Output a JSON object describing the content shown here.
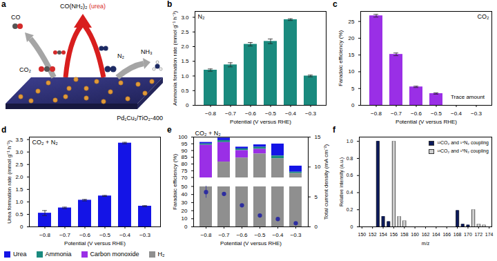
{
  "diagram": {
    "title": "a",
    "labels": {
      "co": "CO",
      "co2": "CO₂",
      "urea": "CO(NH₂)₂",
      "urea_note": "(urea)",
      "n2": "N₂",
      "nh3": "NH₃",
      "catalyst": "Pd₁Cu₁/TiO₂-400"
    }
  },
  "chart_data": [
    {
      "type": "bar",
      "title": "b",
      "annotation": "N₂",
      "categories": [
        "−0.8",
        "−0.7",
        "−0.6",
        "−0.5",
        "−0.4",
        "−0.3"
      ],
      "values": [
        1.2,
        1.38,
        2.08,
        2.18,
        2.92,
        1.0
      ],
      "errors": [
        0.04,
        0.07,
        0.06,
        0.08,
        0.03,
        0.03
      ],
      "color": "#1a8a7e",
      "xlabel": "Potential (V versus RHE)",
      "ylabel": "Ammonia formation rate (mmol g⁻¹ h⁻¹)",
      "ylim": [
        0,
        3.2
      ],
      "yticks": [
        0,
        0.5,
        {
          "value": 1,
          "label": "1.0"
        },
        1.5,
        {
          "value": 2,
          "label": "2.0"
        },
        2.5,
        {
          "value": 3,
          "label": "3.0"
        }
      ]
    },
    {
      "type": "bar",
      "title": "c",
      "annotation": "CO₂",
      "null_label": "Trace amount",
      "categories": [
        "−0.8",
        "−0.7",
        "−0.6",
        "−0.5",
        "−0.4",
        "−0.3"
      ],
      "values": [
        26.7,
        15.2,
        5.5,
        3.5,
        null,
        null
      ],
      "errors": [
        0.4,
        0.4,
        0.2,
        0.2,
        null,
        null
      ],
      "color": "#9a2fe6",
      "xlabel": "Potential (V versus RHE)",
      "ylabel": "Faradaic efficiency (%)",
      "ylim": [
        0,
        28
      ],
      "yticks": [
        0,
        5,
        10,
        15,
        20,
        25
      ]
    },
    {
      "type": "bar",
      "title": "d",
      "annotation": "CO₂ + N₂",
      "categories": [
        "−0.8",
        "−0.7",
        "−0.6",
        "−0.5",
        "−0.4",
        "−0.3"
      ],
      "values": [
        0.55,
        0.76,
        1.07,
        1.24,
        3.36,
        0.83
      ],
      "errors": [
        0.1,
        0.03,
        0.03,
        0.02,
        0.03,
        0.02
      ],
      "color": "#1414e6",
      "xlabel": "Potential (V versus RHE)",
      "ylabel": "Urea formation rate (mmol g⁻¹ h⁻¹)",
      "ylim": [
        0,
        3.6
      ],
      "yticks": [
        0,
        0.5,
        {
          "value": 1,
          "label": "1.0"
        },
        1.5,
        {
          "value": 2,
          "label": "2.0"
        },
        2.5,
        {
          "value": 3,
          "label": "3.0"
        },
        3.5
      ]
    },
    {
      "type": "bar",
      "title": "e",
      "annotation": "CO₂ + N₂",
      "stacked": true,
      "legend": "bottom",
      "categories": [
        "−0.8",
        "−0.7",
        "−0.6",
        "−0.5",
        "−0.4",
        "−0.3"
      ],
      "series": [
        {
          "name": "Urea",
          "color": "#1414e6",
          "values": [
            1.1,
            1.8,
            1.3,
            1.8,
            8.9,
            4.5
          ]
        },
        {
          "name": "Ammonia",
          "color": "#1a8a7e",
          "values": [
            1.0,
            1.5,
            1.3,
            1.5,
            2.0,
            1.0
          ]
        },
        {
          "name": "Carbon monoxide",
          "color": "#9a2fe6",
          "values": [
            26,
            14.5,
            5.5,
            3.5,
            0,
            0
          ]
        },
        {
          "name": "H₂",
          "color": "#8f8f8f",
          "values": [
            68,
            81.5,
            84.5,
            87.5,
            84,
            73
          ]
        },
        {
          "axis": "y2",
          "type": "scatter",
          "marker": "dot",
          "color": "#2e2ea0",
          "values": [
            5.8,
            5.5,
            3.6,
            1.9,
            1.3,
            0.6
          ],
          "errors": [
            1.0,
            0.2,
            0.15,
            0.1,
            0.1,
            0.1
          ]
        }
      ],
      "xlabel": "Potential (V versus RHE)",
      "ylabel": "Faradaic efficiency (%)",
      "y2label": "Total current density (mA cm⁻²)",
      "ylim": [
        0,
        100
      ],
      "ybreak": [
        50,
        70
      ],
      "yticks": [
        0,
        10,
        20,
        30,
        40,
        50,
        70,
        75,
        80,
        85,
        90,
        95,
        100
      ],
      "y2lim": [
        0,
        15
      ],
      "y2ticks": [
        0,
        5,
        10,
        15
      ]
    },
    {
      "type": "bar",
      "title": "f",
      "legend": "top-right",
      "series": [
        {
          "name": "¹²CO₂ and ¹⁴N₂ coupling",
          "color": "#0c1a5c",
          "x": [
            153,
            154,
            155,
            168,
            169,
            170
          ],
          "values": [
            1.0,
            0.12,
            0.06,
            0.19,
            0.03,
            0.02
          ]
        },
        {
          "name": "¹³CO₂ and ¹⁵N₂ coupling",
          "color": "#cfcfcf",
          "x": [
            156,
            157,
            158,
            171,
            172,
            173
          ],
          "values": [
            1.0,
            0.12,
            0.07,
            0.2,
            0.03,
            0.02
          ]
        }
      ],
      "xlabel": "m/z",
      "ylabel": "Relative intensity (a.u.)",
      "xlim": [
        149.5,
        174.5
      ],
      "xticks": [
        150,
        152,
        154,
        156,
        158,
        160,
        162,
        164,
        166,
        168,
        170,
        172,
        174
      ],
      "ylim": [
        0,
        1.05
      ],
      "yticks": [
        0,
        0.2,
        0.4,
        0.6,
        0.8,
        {
          "value": 1,
          "label": "1.0"
        }
      ]
    }
  ]
}
